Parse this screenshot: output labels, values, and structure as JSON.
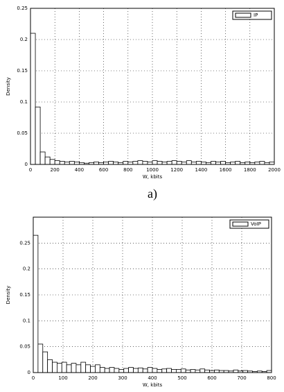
{
  "chart_data": [
    {
      "type": "histogram",
      "caption": "a)",
      "xlabel": "W, kbits",
      "ylabel": "Density",
      "bins": [
        0,
        40,
        80,
        120,
        160,
        200,
        240,
        280,
        320,
        360,
        400,
        440,
        480,
        520,
        560,
        600,
        640,
        680,
        720,
        760,
        800,
        840,
        880,
        920,
        960,
        1000,
        1040,
        1080,
        1120,
        1160,
        1200,
        1240,
        1280,
        1320,
        1360,
        1400,
        1440,
        1480,
        1520,
        1560,
        1600,
        1640,
        1680,
        1720,
        1760,
        1800,
        1840,
        1880,
        1920,
        1960,
        2000
      ],
      "series": [
        {
          "name": "IP",
          "color": "#ffffff",
          "values": [
            0.21,
            0.092,
            0.02,
            0.012,
            0.008,
            0.006,
            0.005,
            0.004,
            0.005,
            0.004,
            0.003,
            0.002,
            0.003,
            0.004,
            0.003,
            0.004,
            0.005,
            0.004,
            0.003,
            0.005,
            0.004,
            0.005,
            0.006,
            0.005,
            0.004,
            0.006,
            0.005,
            0.004,
            0.005,
            0.006,
            0.005,
            0.004,
            0.006,
            0.004,
            0.005,
            0.004,
            0.003,
            0.005,
            0.004,
            0.005,
            0.003,
            0.004,
            0.005,
            0.003,
            0.004,
            0.003,
            0.004,
            0.005,
            0.003,
            0.004
          ]
        }
      ],
      "xlim": [
        0,
        2000
      ],
      "xticks": [
        0,
        200,
        400,
        600,
        800,
        1000,
        1200,
        1400,
        1600,
        1800,
        2000
      ],
      "ylim": [
        0,
        0.25
      ],
      "yticks": [
        0,
        0.05,
        0.1,
        0.15,
        0.2,
        0.25
      ],
      "grid": true,
      "legend": "upper right"
    },
    {
      "type": "histogram",
      "xlabel": "W, kbits",
      "ylabel": "Density",
      "bins": [
        0,
        16,
        32,
        48,
        64,
        80,
        96,
        112,
        128,
        144,
        160,
        176,
        192,
        208,
        224,
        240,
        256,
        272,
        288,
        304,
        320,
        336,
        352,
        368,
        384,
        400,
        416,
        432,
        448,
        464,
        480,
        496,
        512,
        528,
        544,
        560,
        576,
        592,
        608,
        624,
        640,
        656,
        672,
        688,
        704,
        720,
        736,
        752,
        768,
        784,
        800
      ],
      "series": [
        {
          "name": "VoIP",
          "color": "#ffffff",
          "values": [
            0.265,
            0.055,
            0.04,
            0.025,
            0.02,
            0.018,
            0.02,
            0.015,
            0.018,
            0.015,
            0.02,
            0.015,
            0.012,
            0.015,
            0.01,
            0.008,
            0.01,
            0.008,
            0.006,
            0.008,
            0.01,
            0.008,
            0.009,
            0.007,
            0.01,
            0.008,
            0.006,
            0.007,
            0.008,
            0.006,
            0.006,
            0.007,
            0.005,
            0.006,
            0.005,
            0.007,
            0.005,
            0.004,
            0.005,
            0.004,
            0.004,
            0.003,
            0.005,
            0.003,
            0.004,
            0.003,
            0.002,
            0.003,
            0.002,
            0.004
          ]
        }
      ],
      "xlim": [
        0,
        800
      ],
      "xticks": [
        0,
        100,
        200,
        300,
        400,
        500,
        600,
        700,
        800
      ],
      "ylim": [
        0,
        0.3
      ],
      "yticks": [
        0,
        0.05,
        0.1,
        0.15,
        0.2,
        0.25
      ],
      "grid": true,
      "legend": "upper right"
    }
  ]
}
